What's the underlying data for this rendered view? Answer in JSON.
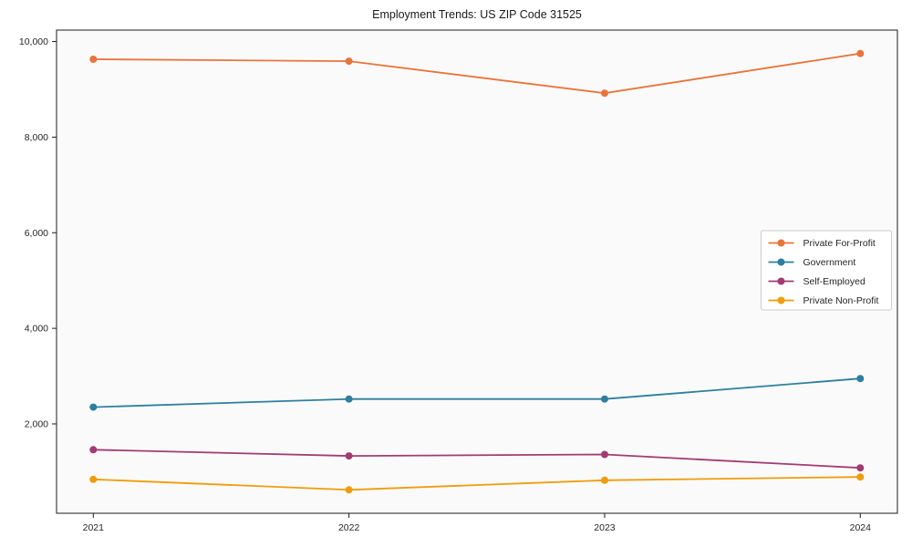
{
  "chart_data": {
    "type": "line",
    "title": "Employment Trends: US ZIP Code 31525",
    "xlabel": "",
    "ylabel": "",
    "x": [
      2021,
      2022,
      2023,
      2024
    ],
    "series": [
      {
        "name": "Private For-Profit",
        "color": "#E8743B",
        "values": [
          9630,
          9590,
          8920,
          9750
        ]
      },
      {
        "name": "Government",
        "color": "#2D7F9D",
        "values": [
          2350,
          2520,
          2520,
          2950
        ]
      },
      {
        "name": "Self-Employed",
        "color": "#A23B72",
        "values": [
          1460,
          1330,
          1360,
          1080
        ]
      },
      {
        "name": "Private Non-Profit",
        "color": "#F09C0A",
        "values": [
          840,
          620,
          820,
          890
        ]
      }
    ],
    "yticks": [
      2000,
      4000,
      6000,
      8000,
      10000
    ],
    "ytick_labels": [
      "2,000",
      "4,000",
      "6,000",
      "8,000",
      "10,000"
    ],
    "ylim": [
      130,
      10240
    ],
    "grid": false,
    "legend_position": "middle-right-inside",
    "colors": {
      "axis": "#1c1c1c",
      "tick_label": "#262626",
      "plot_bg": "#fafafa",
      "legend_bg": "#ffffff",
      "legend_border": "#cccccc",
      "title": "#1a1a1a"
    }
  }
}
